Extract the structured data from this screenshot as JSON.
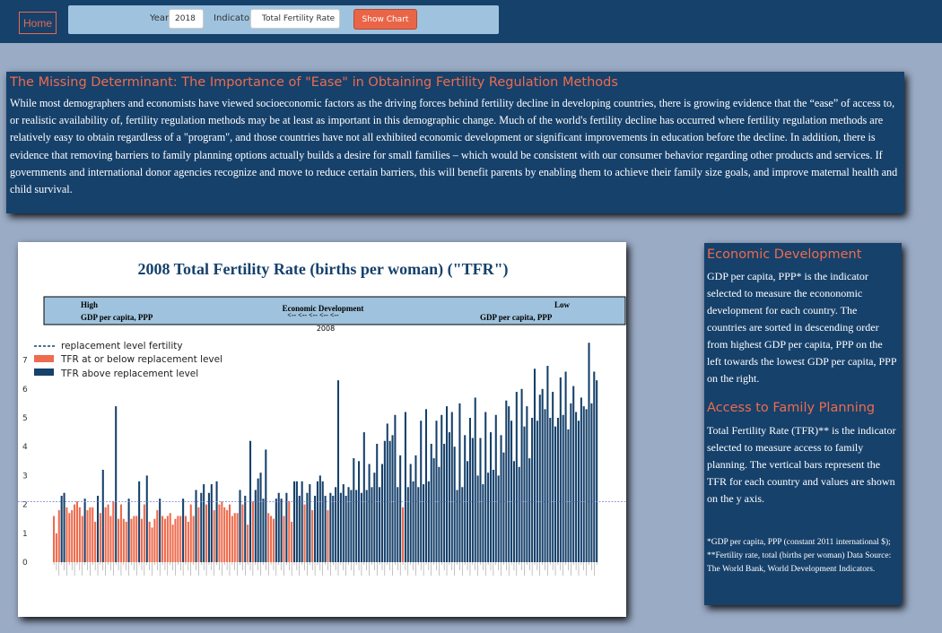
{
  "nav": {
    "home_label": "Home"
  },
  "controls": {
    "year_label": "Year",
    "year_value": "2018",
    "indicator_label": "Indicator",
    "indicator_value": "Total Fertility Rate",
    "show_label": "Show Chart"
  },
  "intro": {
    "title": "The Missing Determinant: The Importance of \"Ease\" in Obtaining Fertility Regulation Methods",
    "body": "While most demographers and economists have viewed socioeconomic factors as the driving forces behind fertility decline in developing countries, there is growing evidence that the “ease” of access to, or realistic availability of, fertility regulation methods may be at least as important in this demographic change. Much of the world's fertility decline has occurred where fertility regulation methods are relatively easy to obtain regardless of a \"program\", and those countries have not all exhibited economic development or significant improvements in education before the decline. In addition, there is evidence that removing barriers to family planning options actually builds a desire for small families – which would be consistent with our consumer behavior regarding other products and services. If governments and international donor agencies recognize and move to reduce certain barriers, this will benefit parents by enabling them to achieve their family size goals, and improve maternal health and child survival."
  },
  "side": {
    "econ_title": "Economic Development",
    "econ_body": "GDP per capita, PPP* is the indicator selected to measure the econonomic development for each country. The countries are sorted in descending order from highest GDP per capita, PPP on the left towards the lowest GDP per capita, PPP on the right.",
    "fp_title": "Access to Family Planning",
    "fp_body": "Total Fertility Rate (TFR)** is the indicator selected to measure access to family planning. The vertical bars represent the TFR for each country and values are shown on the y axis.",
    "notes": "*GDP per capita, PPP (constant 2011 international $); **Fertility rate, total (births per woman) Data Source: The World Bank, World Development Indicators."
  },
  "colors": {
    "page_bg": "#9aabc5",
    "nav_bg": "#16416b",
    "accent": "#ee6b4d",
    "bar_above": "#16416b",
    "bar_below": "#ee6b4d",
    "band_bg": "#9fc3de"
  },
  "chart_data": {
    "type": "bar",
    "title": "2008 Total Fertility Rate (births per woman) (\"TFR\")",
    "band": {
      "left_top": "High",
      "left_bottom": "GDP per capita, PPP",
      "center_top": "Economic Development",
      "center_bottom": "<-- <-- <-- <-- <--",
      "right_top": "Low",
      "right_bottom": "GDP per capita, PPP"
    },
    "year_label": "2008",
    "ylim": [
      0,
      7.5
    ],
    "yticks": [
      0,
      1,
      2,
      3,
      4,
      5,
      6,
      7
    ],
    "reference_line": {
      "value": 2.1,
      "label": "replacement level fertility"
    },
    "legend": {
      "position": "top-left",
      "entries": [
        "replacement level fertility",
        "TFR at or below replacement level",
        "TFR above replacement level"
      ]
    },
    "grid": false,
    "values": [
      1.6,
      1.0,
      1.8,
      2.3,
      2.4,
      1.9,
      1.7,
      1.8,
      2.0,
      2.1,
      1.9,
      1.6,
      2.2,
      1.8,
      1.9,
      1.9,
      1.4,
      2.3,
      1.7,
      3.2,
      1.9,
      2.0,
      1.6,
      2.1,
      5.4,
      1.5,
      2.0,
      1.5,
      1.4,
      2.2,
      1.5,
      1.6,
      1.6,
      2.8,
      1.5,
      2.0,
      3.0,
      1.4,
      1.2,
      1.5,
      1.8,
      2.2,
      1.6,
      1.5,
      1.6,
      1.7,
      1.3,
      1.5,
      1.6,
      1.6,
      2.2,
      1.6,
      1.4,
      2.0,
      1.6,
      2.5,
      1.9,
      2.4,
      2.7,
      2.0,
      2.4,
      2.7,
      1.8,
      2.8,
      2.0,
      2.1,
      1.9,
      1.8,
      2.0,
      1.6,
      1.7,
      1.7,
      2.5,
      2.0,
      2.3,
      1.3,
      4.2,
      2.1,
      2.5,
      2.9,
      3.1,
      2.2,
      3.9,
      1.7,
      1.6,
      1.5,
      2.2,
      2.4,
      2.2,
      1.6,
      2.4,
      2.1,
      1.4,
      2.8,
      2.8,
      2.3,
      2.8,
      2.0,
      2.4,
      2.7,
      1.8,
      2.3,
      2.8,
      3.0,
      2.8,
      2.3,
      1.8,
      2.4,
      2.3,
      2.6,
      6.3,
      2.4,
      2.7,
      2.3,
      2.6,
      2.5,
      3.6,
      2.5,
      3.5,
      2.4,
      4.5,
      2.5,
      3.4,
      2.6,
      3.1,
      4.1,
      2.6,
      3.4,
      4.2,
      4.8,
      4.2,
      4.4,
      5.1,
      2.6,
      3.7,
      1.9,
      5.2,
      2.6,
      3.4,
      2.8,
      3.7,
      2.6,
      4.9,
      2.7,
      5.3,
      2.8,
      4.1,
      3.6,
      4.9,
      3.3,
      5.1,
      4.1,
      5.4,
      4.5,
      5.2,
      4.0,
      2.5,
      5.5,
      2.6,
      4.4,
      3.5,
      5.0,
      4.3,
      5.7,
      3.0,
      4.3,
      2.7,
      5.2,
      3.1,
      4.5,
      3.2,
      5.1,
      3.0,
      4.4,
      3.8,
      5.6,
      5.4,
      4.9,
      3.5,
      5.9,
      3.3,
      6.0,
      4.7,
      5.4,
      3.6,
      5.0,
      6.7,
      4.9,
      5.8,
      6.0,
      5.3,
      6.8,
      5.0,
      5.9,
      4.7,
      5.0,
      6.4,
      5.1,
      6.6,
      4.6,
      5.5,
      6.1,
      5.2,
      4.9,
      5.7,
      5.4,
      5.3,
      7.6,
      5.5,
      6.6,
      6.3
    ]
  }
}
